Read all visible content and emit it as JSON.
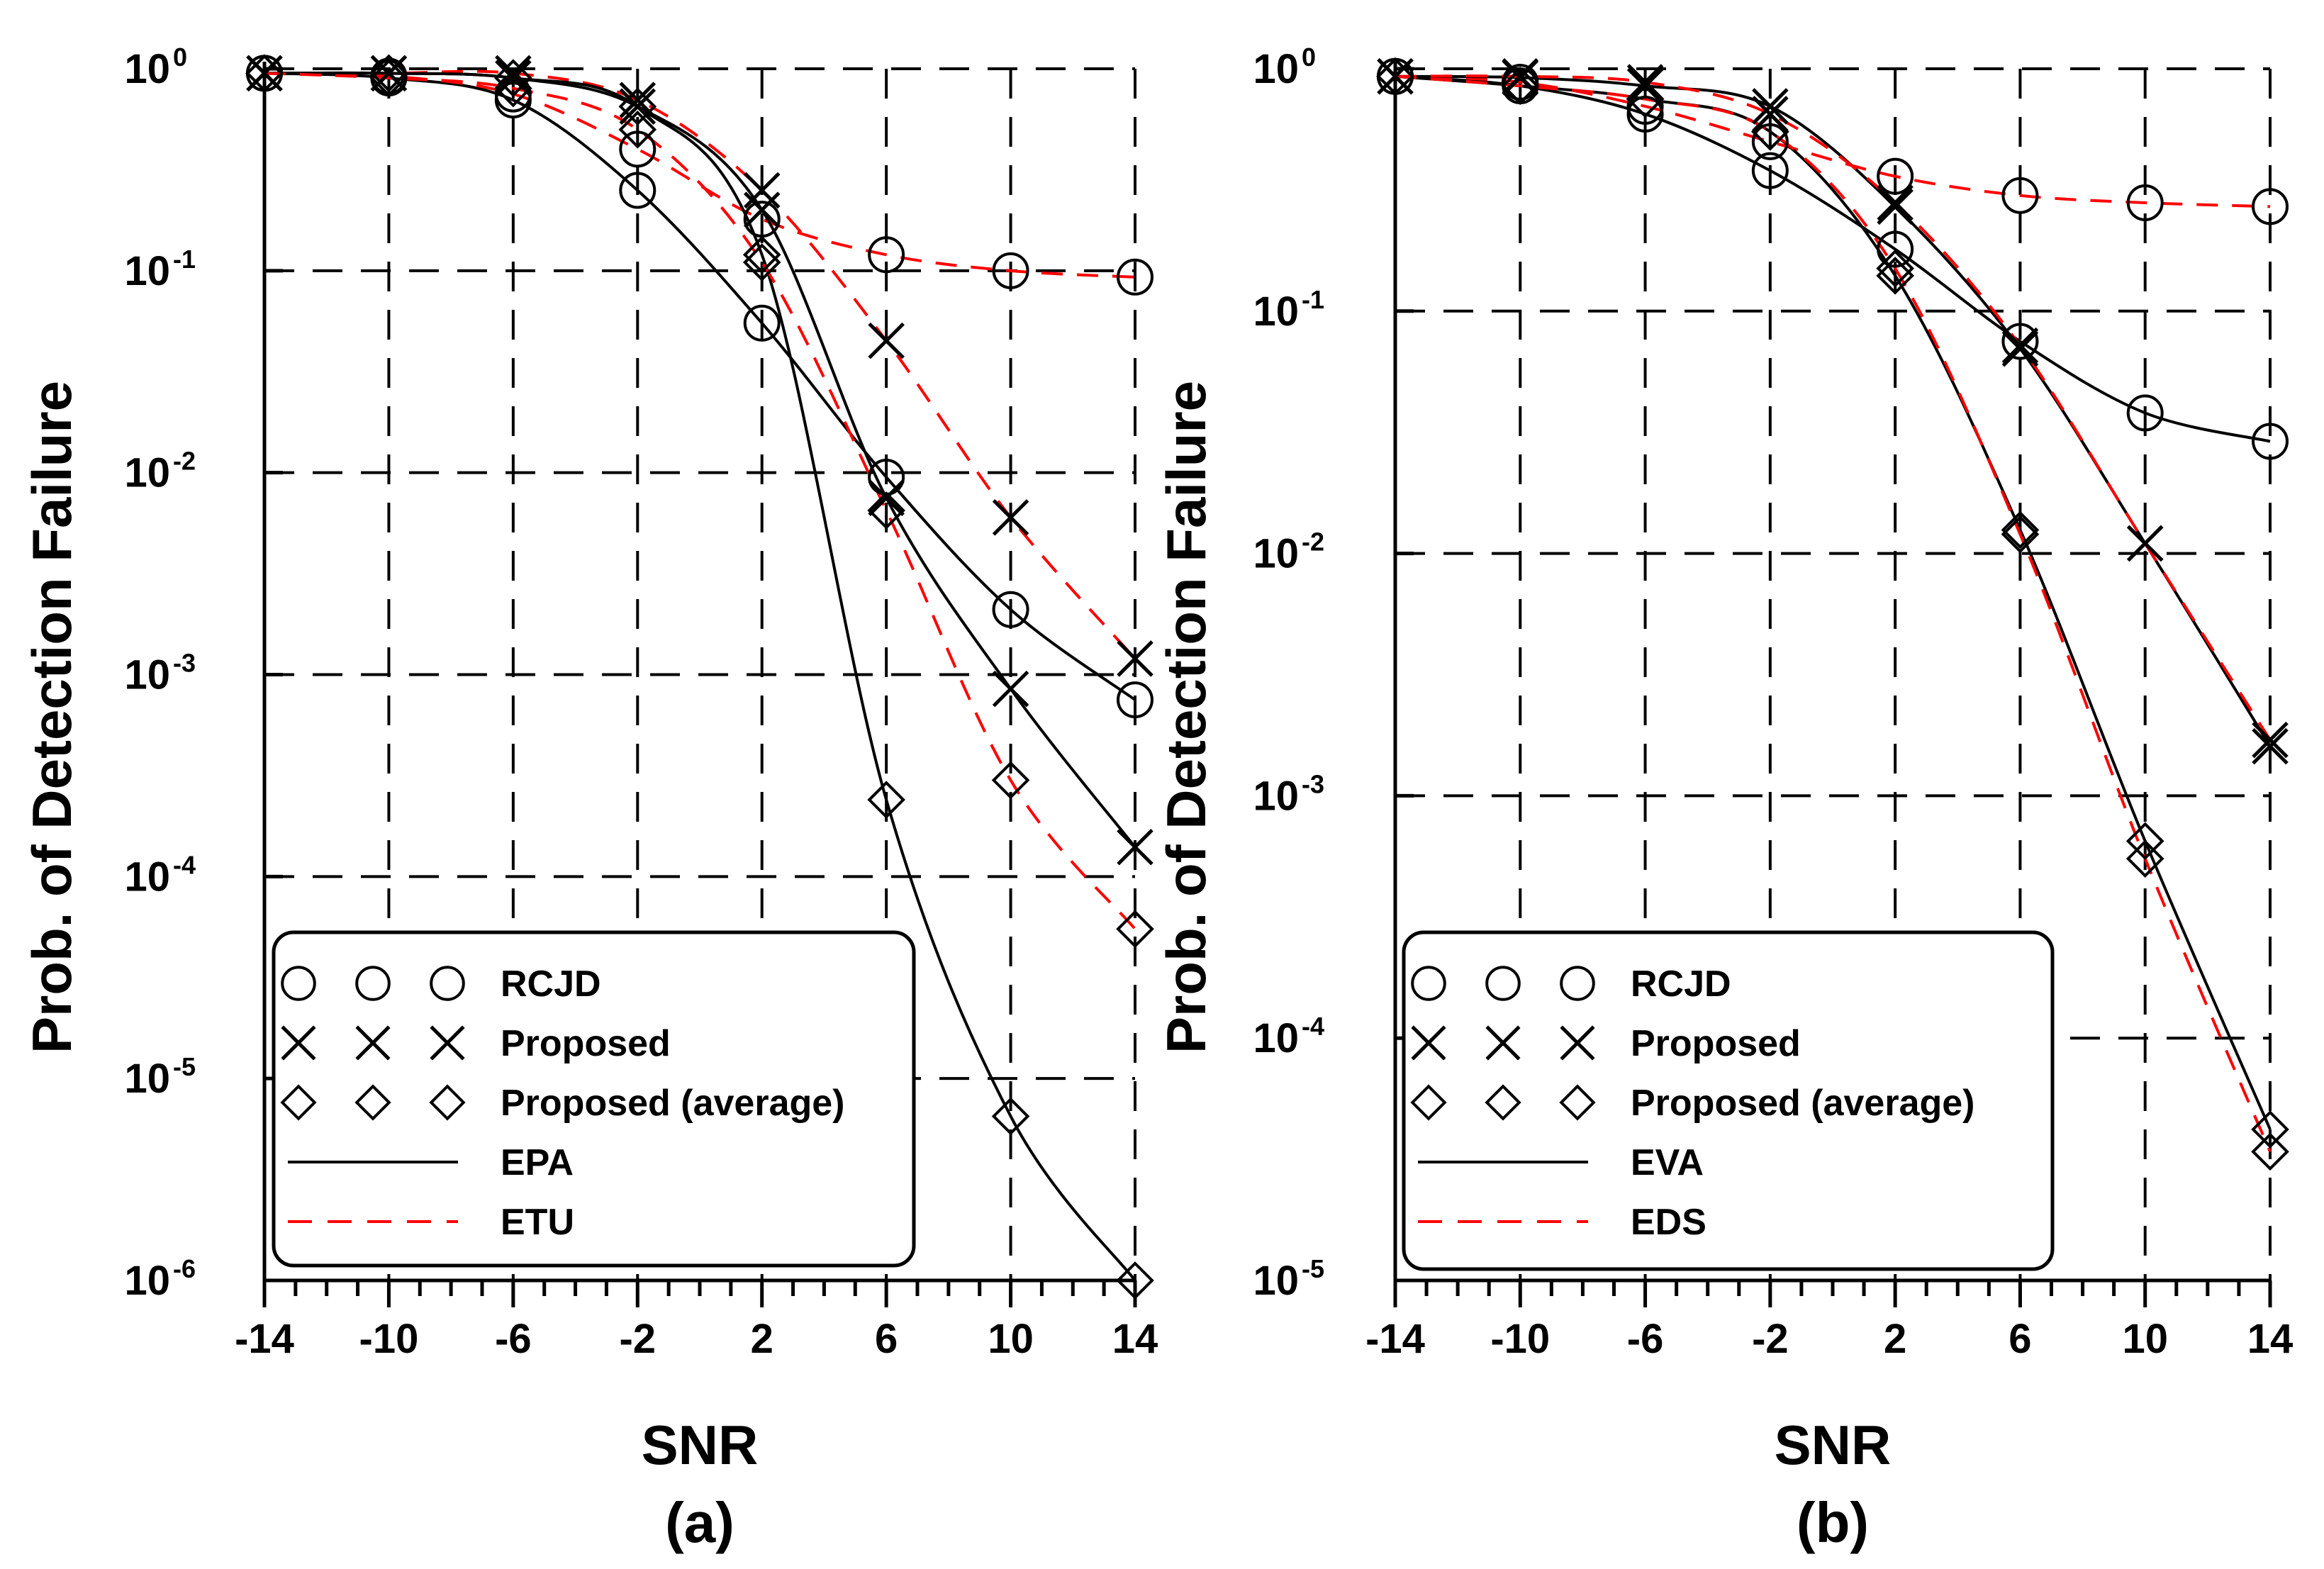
{
  "chart_data": [
    {
      "type": "line",
      "panel_label": "(a)",
      "xlabel": "SNR",
      "ylabel": "Prob. of Detection Failure",
      "yscale": "log",
      "xlim": [
        -14,
        14
      ],
      "ylim_exp": [
        -6,
        0
      ],
      "x_ticks": [
        -14,
        -10,
        -6,
        -2,
        2,
        6,
        10,
        14
      ],
      "y_ticks": [
        {
          "base": "10",
          "exp": "0",
          "value": 1
        },
        {
          "base": "10",
          "exp": "-1",
          "value": 0.1
        },
        {
          "base": "10",
          "exp": "-2",
          "value": 0.01
        },
        {
          "base": "10",
          "exp": "-3",
          "value": 0.001
        },
        {
          "base": "10",
          "exp": "-4",
          "value": 0.0001
        },
        {
          "base": "10",
          "exp": "-5",
          "value": 1e-05
        },
        {
          "base": "10",
          "exp": "-6",
          "value": 1e-06
        }
      ],
      "grid": true,
      "legend_position": "bottom-left",
      "legend": [
        {
          "label": "RCJD",
          "kind": "markers",
          "marker": "circle"
        },
        {
          "label": "Proposed",
          "kind": "markers",
          "marker": "x"
        },
        {
          "label": "Proposed  (average)",
          "kind": "markers",
          "marker": "diamond"
        },
        {
          "label": "EPA",
          "kind": "line",
          "style": "solid",
          "color": "#000000"
        },
        {
          "label": "ETU",
          "kind": "line",
          "style": "dashed",
          "color": "#ff0000"
        }
      ],
      "x": [
        -14,
        -10,
        -6,
        -2,
        2,
        6,
        10,
        14
      ],
      "series": [
        {
          "name": "RCJD - EPA",
          "marker": "circle",
          "line": "solid",
          "color": "#000000",
          "values": [
            0.95,
            0.9,
            0.7,
            0.25,
            0.055,
            0.0095,
            0.0021,
            0.00075
          ]
        },
        {
          "name": "RCJD - ETU",
          "marker": "circle",
          "line": "dashed",
          "color": "#ff0000",
          "values": [
            0.95,
            0.92,
            0.75,
            0.4,
            0.18,
            0.12,
            0.1,
            0.093
          ]
        },
        {
          "name": "Proposed - EPA",
          "marker": "x",
          "line": "solid",
          "color": "#000000",
          "values": [
            0.95,
            0.95,
            0.9,
            0.65,
            0.2,
            0.0075,
            0.00085,
            0.00014
          ]
        },
        {
          "name": "Proposed - ETU",
          "marker": "x",
          "line": "dashed",
          "color": "#ff0000",
          "values": [
            0.95,
            0.95,
            0.95,
            0.7,
            0.25,
            0.045,
            0.006,
            0.0012
          ]
        },
        {
          "name": "Proposed (average) - EPA",
          "marker": "diamond",
          "line": "solid",
          "color": "#000000",
          "values": [
            0.95,
            0.95,
            0.9,
            0.65,
            0.12,
            0.00024,
            6.5e-06,
            1e-06
          ]
        },
        {
          "name": "Proposed (average) - ETU",
          "marker": "diamond",
          "line": "dashed",
          "color": "#ff0000",
          "values": [
            0.95,
            0.9,
            0.8,
            0.5,
            0.11,
            0.0065,
            0.0003,
            5.5e-05
          ]
        }
      ]
    },
    {
      "type": "line",
      "panel_label": "(b)",
      "xlabel": "SNR",
      "ylabel": "Prob. of Detection Failure",
      "yscale": "log",
      "xlim": [
        -14,
        14
      ],
      "ylim_exp": [
        -5,
        0
      ],
      "x_ticks": [
        -14,
        -10,
        -6,
        -2,
        2,
        6,
        10,
        14
      ],
      "y_ticks": [
        {
          "base": "10",
          "exp": "0",
          "value": 1
        },
        {
          "base": "10",
          "exp": "-1",
          "value": 0.1
        },
        {
          "base": "10",
          "exp": "-2",
          "value": 0.01
        },
        {
          "base": "10",
          "exp": "-3",
          "value": 0.001
        },
        {
          "base": "10",
          "exp": "-4",
          "value": 0.0001
        },
        {
          "base": "10",
          "exp": "-5",
          "value": 1e-05
        }
      ],
      "grid": true,
      "legend_position": "bottom-left",
      "legend": [
        {
          "label": "RCJD",
          "kind": "markers",
          "marker": "circle"
        },
        {
          "label": "Proposed",
          "kind": "markers",
          "marker": "x"
        },
        {
          "label": "Proposed  (average)",
          "kind": "markers",
          "marker": "diamond"
        },
        {
          "label": "EVA",
          "kind": "line",
          "style": "solid",
          "color": "#000000"
        },
        {
          "label": "EDS",
          "kind": "line",
          "style": "dashed",
          "color": "#ff0000"
        }
      ],
      "x": [
        -14,
        -10,
        -6,
        -2,
        2,
        6,
        10,
        14
      ],
      "series": [
        {
          "name": "RCJD - EVA",
          "marker": "circle",
          "line": "solid",
          "color": "#000000",
          "values": [
            0.93,
            0.85,
            0.65,
            0.38,
            0.18,
            0.075,
            0.038,
            0.029
          ]
        },
        {
          "name": "RCJD - EDS",
          "marker": "circle",
          "line": "dashed",
          "color": "#ff0000",
          "values": [
            0.93,
            0.88,
            0.7,
            0.5,
            0.36,
            0.3,
            0.28,
            0.27
          ]
        },
        {
          "name": "Proposed - EVA",
          "marker": "x",
          "line": "solid",
          "color": "#000000",
          "values": [
            0.93,
            0.92,
            0.85,
            0.7,
            0.27,
            0.07,
            0.011,
            0.0016
          ]
        },
        {
          "name": "Proposed - EDS",
          "marker": "x",
          "line": "dashed",
          "color": "#ff0000",
          "values": [
            0.93,
            0.93,
            0.88,
            0.65,
            0.28,
            0.072,
            0.011,
            0.0017
          ]
        },
        {
          "name": "Proposed (average) - EVA",
          "marker": "diamond",
          "line": "solid",
          "color": "#000000",
          "values": [
            0.93,
            0.85,
            0.75,
            0.55,
            0.14,
            0.0125,
            0.00065,
            4.2e-05
          ]
        },
        {
          "name": "Proposed (average) - EDS",
          "marker": "diamond",
          "line": "dashed",
          "color": "#ff0000",
          "values": [
            0.93,
            0.85,
            0.75,
            0.55,
            0.15,
            0.012,
            0.00055,
            3.4e-05
          ]
        }
      ]
    }
  ]
}
